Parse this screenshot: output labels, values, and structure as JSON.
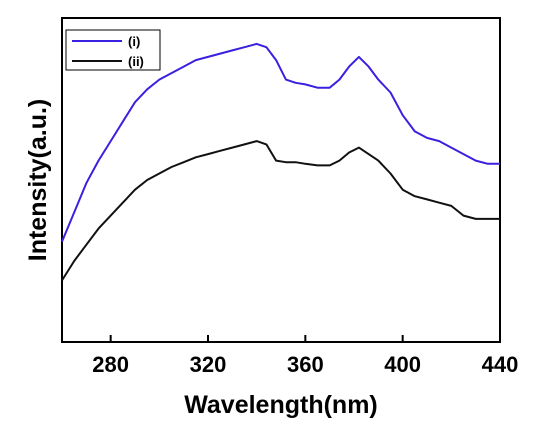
{
  "chart_data": {
    "type": "line",
    "xlabel": "Wavelength(nm)",
    "ylabel": "Intensity(a.u.)",
    "xlim": [
      260,
      440
    ],
    "ylim": [
      0,
      100
    ],
    "xticks": [
      280,
      320,
      360,
      400,
      440
    ],
    "ytick_labels": "none",
    "grid": false,
    "legend_position": "top-left",
    "series": [
      {
        "name": "(i)",
        "color": "#3a20e0",
        "x": [
          260,
          265,
          270,
          275,
          280,
          285,
          290,
          295,
          300,
          305,
          310,
          315,
          320,
          325,
          330,
          335,
          340,
          344,
          348,
          352,
          356,
          360,
          365,
          370,
          374,
          378,
          382,
          386,
          390,
          395,
          400,
          405,
          410,
          415,
          420,
          425,
          430,
          435,
          440
        ],
        "y": [
          31,
          40,
          49,
          56,
          62,
          68,
          74,
          78,
          81,
          83,
          85,
          87,
          88,
          89,
          90,
          91,
          92,
          91,
          87,
          81,
          80,
          79.5,
          78.5,
          78.5,
          81,
          85,
          88,
          85,
          81,
          77,
          70,
          65,
          63,
          62,
          60,
          58,
          56,
          55,
          55
        ]
      },
      {
        "name": "(ii)",
        "color": "#111111",
        "x": [
          260,
          265,
          270,
          275,
          280,
          285,
          290,
          295,
          300,
          305,
          310,
          315,
          320,
          325,
          330,
          335,
          340,
          344,
          348,
          352,
          356,
          360,
          365,
          370,
          374,
          378,
          382,
          386,
          390,
          395,
          400,
          405,
          410,
          415,
          420,
          425,
          430,
          435,
          440
        ],
        "y": [
          19,
          25,
          30,
          35,
          39,
          43,
          47,
          50,
          52,
          54,
          55.5,
          57,
          58,
          59,
          60,
          61,
          62,
          61,
          56,
          55.5,
          55.5,
          55,
          54.5,
          54.5,
          56,
          58.5,
          60,
          58,
          56,
          52,
          47,
          45,
          44,
          43,
          42,
          39,
          38,
          38,
          38
        ]
      }
    ]
  }
}
